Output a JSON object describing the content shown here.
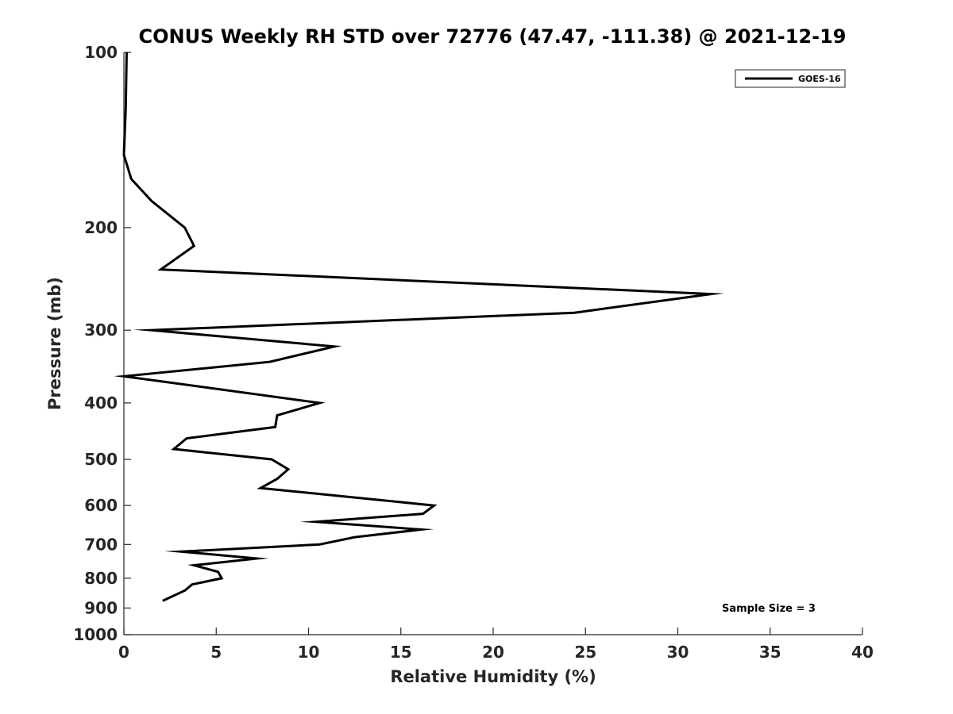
{
  "chart_data": {
    "type": "line",
    "title": "CONUS Weekly RH STD over 72776 (47.47, -111.38) @ 2021-12-19",
    "xlabel": "Relative Humidity (%)",
    "ylabel": "Pressure (mb)",
    "xlim": [
      0,
      40
    ],
    "ylim": [
      100,
      1000
    ],
    "y_scale": "log",
    "y_reversed": true,
    "x_ticks": [
      "0",
      "5",
      "10",
      "15",
      "20",
      "25",
      "30",
      "35",
      "40"
    ],
    "y_ticks": [
      "100",
      "200",
      "300",
      "400",
      "500",
      "600",
      "700",
      "800",
      "900",
      "1000"
    ],
    "grid": false,
    "legend_position": "top-right",
    "annotation": "Sample Size = 3",
    "series": [
      {
        "name": "GOES-16",
        "color": "#000000",
        "points": [
          {
            "x": 0.15,
            "y": 100
          },
          {
            "x": 0.1,
            "y": 125
          },
          {
            "x": 0.0,
            "y": 150
          },
          {
            "x": 0.4,
            "y": 165
          },
          {
            "x": 1.5,
            "y": 180
          },
          {
            "x": 3.3,
            "y": 200
          },
          {
            "x": 3.8,
            "y": 215
          },
          {
            "x": 2.0,
            "y": 236
          },
          {
            "x": 31.8,
            "y": 260
          },
          {
            "x": 24.4,
            "y": 280
          },
          {
            "x": 1.5,
            "y": 300
          },
          {
            "x": 11.4,
            "y": 320
          },
          {
            "x": 7.9,
            "y": 340
          },
          {
            "x": 0.0,
            "y": 360
          },
          {
            "x": 10.6,
            "y": 400
          },
          {
            "x": 8.3,
            "y": 420
          },
          {
            "x": 8.2,
            "y": 440
          },
          {
            "x": 3.4,
            "y": 460
          },
          {
            "x": 2.7,
            "y": 480
          },
          {
            "x": 8.0,
            "y": 500
          },
          {
            "x": 8.9,
            "y": 520
          },
          {
            "x": 8.3,
            "y": 540
          },
          {
            "x": 7.4,
            "y": 560
          },
          {
            "x": 16.8,
            "y": 600
          },
          {
            "x": 16.2,
            "y": 620
          },
          {
            "x": 10.4,
            "y": 640
          },
          {
            "x": 16.1,
            "y": 660
          },
          {
            "x": 12.5,
            "y": 680
          },
          {
            "x": 10.6,
            "y": 700
          },
          {
            "x": 3.1,
            "y": 720
          },
          {
            "x": 7.2,
            "y": 740
          },
          {
            "x": 3.8,
            "y": 760
          },
          {
            "x": 5.1,
            "y": 780
          },
          {
            "x": 5.3,
            "y": 800
          },
          {
            "x": 3.7,
            "y": 820
          },
          {
            "x": 3.3,
            "y": 840
          },
          {
            "x": 2.1,
            "y": 875
          }
        ]
      }
    ]
  }
}
